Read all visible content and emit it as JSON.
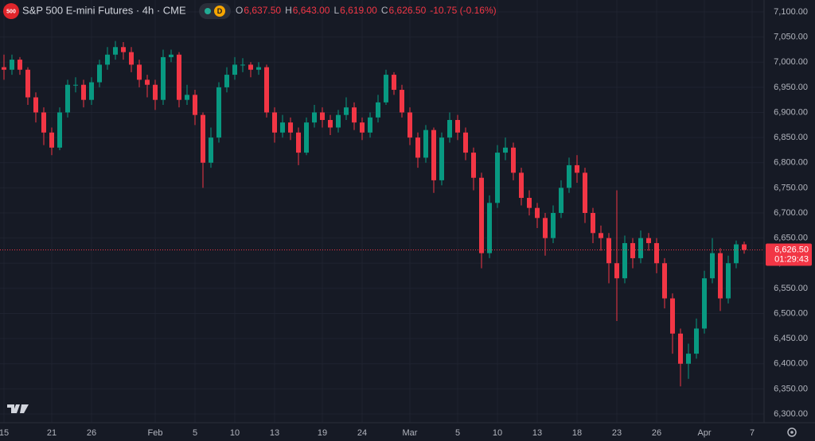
{
  "chart_data": {
    "type": "candlestick",
    "title": "S&P 500 E-mini Futures · 4h · CME",
    "badge": "500",
    "interval_badge": "D",
    "ohlc_header": [
      {
        "label": "O",
        "value": "6,637.50"
      },
      {
        "label": "H",
        "value": "6,643.00"
      },
      {
        "label": "L",
        "value": "6,619.00"
      },
      {
        "label": "C",
        "value": "6,626.50"
      }
    ],
    "change": "-10.75 (-0.16%)",
    "last_price": {
      "value": 6626.5,
      "label": "6,626.50"
    },
    "countdown": "01:29:43",
    "up_color": "#089981",
    "down_color": "#f23645",
    "grid": true,
    "xlim": [
      -0.5,
      95.5
    ],
    "xticks": [
      {
        "value": 0,
        "label": "15"
      },
      {
        "value": 6,
        "label": "21"
      },
      {
        "value": 11,
        "label": "26"
      },
      {
        "value": 19,
        "label": "Feb"
      },
      {
        "value": 24,
        "label": "5"
      },
      {
        "value": 29,
        "label": "10"
      },
      {
        "value": 34,
        "label": "13"
      },
      {
        "value": 40,
        "label": "19"
      },
      {
        "value": 45,
        "label": "24"
      },
      {
        "value": 51,
        "label": "Mar"
      },
      {
        "value": 57,
        "label": "5"
      },
      {
        "value": 62,
        "label": "10"
      },
      {
        "value": 67,
        "label": "13"
      },
      {
        "value": 72,
        "label": "18"
      },
      {
        "value": 77,
        "label": "23"
      },
      {
        "value": 82,
        "label": "26"
      },
      {
        "value": 88,
        "label": "Apr"
      },
      {
        "value": 94,
        "label": "7"
      }
    ],
    "ylim": [
      6300,
      7100
    ],
    "yticks": [
      {
        "value": 6300,
        "label": "6,300.00"
      },
      {
        "value": 6350,
        "label": "6,350.00"
      },
      {
        "value": 6400,
        "label": "6,400.00"
      },
      {
        "value": 6450,
        "label": "6,450.00"
      },
      {
        "value": 6500,
        "label": "6,500.00"
      },
      {
        "value": 6550,
        "label": "6,550.00"
      },
      {
        "value": 6600,
        "label": "6,600.00"
      },
      {
        "value": 6650,
        "label": "6,650.00"
      },
      {
        "value": 6700,
        "label": "6,700.00"
      },
      {
        "value": 6750,
        "label": "6,750.00"
      },
      {
        "value": 6800,
        "label": "6,800.00"
      },
      {
        "value": 6850,
        "label": "6,850.00"
      },
      {
        "value": 6900,
        "label": "6,900.00"
      },
      {
        "value": 6950,
        "label": "6,950.00"
      },
      {
        "value": 7000,
        "label": "7,000.00"
      },
      {
        "value": 7050,
        "label": "7,050.00"
      },
      {
        "value": 7100,
        "label": "7,100.00"
      }
    ],
    "open": [
      6990,
      6985,
      7005,
      6985,
      6930,
      6900,
      6860,
      6830,
      6900,
      6955,
      6955,
      6925,
      6960,
      6995,
      7015,
      7030,
      7020,
      6995,
      6965,
      6955,
      6925,
      7010,
      7015,
      6925,
      6935,
      6895,
      6800,
      6850,
      6950,
      6975,
      6995,
      6995,
      6985,
      6990,
      6900,
      6860,
      6880,
      6860,
      6820,
      6880,
      6900,
      6885,
      6870,
      6895,
      6910,
      6880,
      6860,
      6890,
      6920,
      6975,
      6945,
      6900,
      6850,
      6810,
      6865,
      6765,
      6850,
      6885,
      6860,
      6820,
      6770,
      6620,
      6720,
      6820,
      6830,
      6780,
      6730,
      6710,
      6690,
      6650,
      6700,
      6750,
      6795,
      6780,
      6700,
      6660,
      6650,
      6600,
      6570,
      6640,
      6610,
      6650,
      6640,
      6600,
      6530,
      6460,
      6400,
      6420,
      6470,
      6570,
      6620,
      6530,
      6600,
      6637.5
    ],
    "high": [
      7015,
      7015,
      7010,
      6990,
      6940,
      6910,
      6870,
      6910,
      6965,
      6970,
      6965,
      6970,
      7005,
      7030,
      7042,
      7040,
      7030,
      7005,
      6975,
      6965,
      7025,
      7025,
      7020,
      6955,
      6945,
      6900,
      6870,
      6960,
      6990,
      7010,
      7008,
      7000,
      7000,
      6995,
      6910,
      6895,
      6890,
      6870,
      6890,
      6915,
      6910,
      6895,
      6905,
      6930,
      6920,
      6890,
      6900,
      6935,
      6985,
      6980,
      6955,
      6910,
      6860,
      6875,
      6870,
      6860,
      6900,
      6895,
      6870,
      6830,
      6780,
      6735,
      6835,
      6850,
      6840,
      6790,
      6745,
      6720,
      6700,
      6715,
      6765,
      6810,
      6815,
      6790,
      6710,
      6675,
      6660,
      6745,
      6655,
      6650,
      6665,
      6660,
      6650,
      6610,
      6540,
      6470,
      6440,
      6490,
      6585,
      6650,
      6630,
      6615,
      6645,
      6643
    ],
    "low": [
      6965,
      6975,
      6975,
      6915,
      6880,
      6835,
      6815,
      6825,
      6890,
      6940,
      6910,
      6915,
      6950,
      6985,
      7005,
      7005,
      6980,
      6950,
      6930,
      6905,
      6915,
      7000,
      6910,
      6915,
      6875,
      6750,
      6790,
      6840,
      6940,
      6965,
      6980,
      6970,
      6975,
      6890,
      6840,
      6850,
      6845,
      6795,
      6815,
      6870,
      6870,
      6855,
      6860,
      6885,
      6865,
      6845,
      6850,
      6880,
      6915,
      6935,
      6890,
      6835,
      6790,
      6800,
      6740,
      6755,
      6840,
      6845,
      6805,
      6745,
      6590,
      6610,
      6710,
      6805,
      6765,
      6715,
      6695,
      6670,
      6615,
      6640,
      6690,
      6740,
      6760,
      6680,
      6640,
      6625,
      6560,
      6485,
      6560,
      6590,
      6600,
      6625,
      6580,
      6510,
      6420,
      6355,
      6370,
      6410,
      6460,
      6560,
      6505,
      6520,
      6590,
      6619
    ],
    "close": [
      6985,
      7005,
      6985,
      6930,
      6900,
      6860,
      6830,
      6900,
      6955,
      6955,
      6925,
      6960,
      6995,
      7015,
      7030,
      7020,
      6995,
      6965,
      6955,
      6925,
      7010,
      7015,
      6925,
      6935,
      6895,
      6800,
      6850,
      6950,
      6975,
      6995,
      6995,
      6985,
      6990,
      6900,
      6860,
      6880,
      6860,
      6820,
      6880,
      6900,
      6885,
      6870,
      6895,
      6910,
      6880,
      6860,
      6890,
      6920,
      6975,
      6945,
      6900,
      6850,
      6810,
      6865,
      6765,
      6850,
      6885,
      6860,
      6820,
      6770,
      6620,
      6720,
      6820,
      6830,
      6780,
      6730,
      6710,
      6690,
      6650,
      6700,
      6750,
      6795,
      6780,
      6700,
      6660,
      6650,
      6600,
      6570,
      6640,
      6610,
      6650,
      6640,
      6600,
      6530,
      6460,
      6400,
      6420,
      6470,
      6570,
      6620,
      6530,
      6600,
      6637.5,
      6626.5
    ]
  }
}
